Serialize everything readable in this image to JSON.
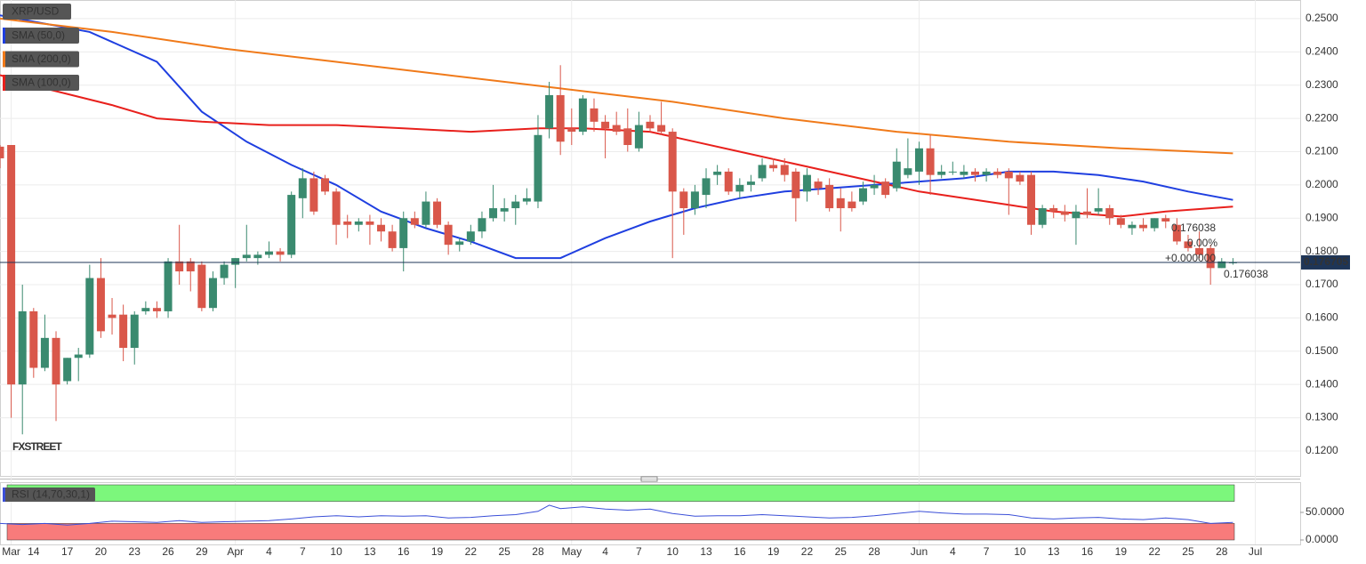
{
  "chart_data": [
    {
      "type": "candlestick",
      "title": "XRP/USD",
      "x": [
        0,
        1,
        2,
        3,
        4,
        5,
        6,
        7,
        8,
        9,
        10,
        11,
        12,
        13,
        14,
        15,
        16,
        17,
        18,
        19,
        20,
        21,
        22,
        23,
        24,
        25,
        26,
        27,
        28,
        29,
        30,
        31,
        32,
        33,
        34,
        35,
        36,
        37,
        38,
        39,
        40,
        41,
        42,
        43,
        44,
        45,
        46,
        47,
        48,
        49,
        50,
        51,
        52,
        53,
        54,
        55,
        56,
        57,
        58,
        59,
        60,
        61,
        62,
        63,
        64,
        65,
        66,
        67,
        68,
        69,
        70,
        71,
        72,
        73,
        74,
        75,
        76,
        77,
        78,
        79,
        80,
        81,
        82,
        83,
        84,
        85,
        86,
        87,
        88,
        89,
        90,
        91,
        92,
        93,
        94,
        95,
        96,
        97,
        98,
        99,
        100,
        101,
        102,
        103,
        104,
        105,
        106,
        107,
        108,
        109,
        110
      ],
      "open": [
        0.2115,
        0.212,
        0.14,
        0.162,
        0.145,
        0.154,
        0.141,
        0.148,
        0.149,
        0.172,
        0.161,
        0.161,
        0.151,
        0.162,
        0.163,
        0.162,
        0.177,
        0.177,
        0.176,
        0.163,
        0.172,
        0.176,
        0.178,
        0.178,
        0.179,
        0.18,
        0.179,
        0.196,
        0.202,
        0.202,
        0.198,
        0.189,
        0.188,
        0.189,
        0.188,
        0.186,
        0.181,
        0.19,
        0.188,
        0.195,
        0.188,
        0.182,
        0.183,
        0.186,
        0.19,
        0.192,
        0.193,
        0.195,
        0.195,
        0.217,
        0.227,
        0.217,
        0.216,
        0.223,
        0.219,
        0.218,
        0.217,
        0.211,
        0.219,
        0.218,
        0.216,
        0.198,
        0.193,
        0.197,
        0.203,
        0.204,
        0.198,
        0.2,
        0.202,
        0.206,
        0.206,
        0.204,
        0.198,
        0.201,
        0.2,
        0.196,
        0.195,
        0.195,
        0.199,
        0.201,
        0.199,
        0.203,
        0.204,
        0.211,
        0.203,
        0.204,
        0.203,
        0.204,
        0.203,
        0.204,
        0.204,
        0.203,
        0.203,
        0.188,
        0.193,
        0.192,
        0.19,
        0.192,
        0.192,
        0.193,
        0.19,
        0.187,
        0.188,
        0.187,
        0.19,
        0.188,
        0.183,
        0.181,
        0.181,
        0.175,
        0.1767
      ],
      "high": [
        0.212,
        0.2115,
        0.17,
        0.163,
        0.161,
        0.156,
        0.148,
        0.151,
        0.176,
        0.178,
        0.166,
        0.164,
        0.162,
        0.165,
        0.165,
        0.178,
        0.188,
        0.178,
        0.177,
        0.174,
        0.177,
        0.178,
        0.188,
        0.18,
        0.183,
        0.181,
        0.198,
        0.205,
        0.204,
        0.203,
        0.199,
        0.191,
        0.19,
        0.191,
        0.19,
        0.188,
        0.192,
        0.192,
        0.198,
        0.196,
        0.189,
        0.184,
        0.188,
        0.192,
        0.2,
        0.196,
        0.197,
        0.199,
        0.221,
        0.231,
        0.236,
        0.223,
        0.227,
        0.226,
        0.221,
        0.222,
        0.223,
        0.222,
        0.221,
        0.225,
        0.217,
        0.199,
        0.2,
        0.205,
        0.206,
        0.205,
        0.202,
        0.203,
        0.208,
        0.208,
        0.208,
        0.205,
        0.205,
        0.202,
        0.202,
        0.199,
        0.198,
        0.201,
        0.203,
        0.202,
        0.211,
        0.214,
        0.213,
        0.215,
        0.206,
        0.207,
        0.206,
        0.205,
        0.205,
        0.205,
        0.205,
        0.204,
        0.204,
        0.194,
        0.194,
        0.194,
        0.194,
        0.199,
        0.199,
        0.194,
        0.191,
        0.189,
        0.19,
        0.19,
        0.191,
        0.19,
        0.185,
        0.186,
        0.182,
        0.178,
        0.178
      ],
      "low": [
        0.205,
        0.13,
        0.125,
        0.142,
        0.144,
        0.129,
        0.14,
        0.141,
        0.148,
        0.154,
        0.155,
        0.147,
        0.146,
        0.161,
        0.16,
        0.16,
        0.17,
        0.168,
        0.162,
        0.162,
        0.17,
        0.169,
        0.177,
        0.176,
        0.178,
        0.177,
        0.178,
        0.19,
        0.191,
        0.197,
        0.182,
        0.184,
        0.186,
        0.182,
        0.183,
        0.18,
        0.174,
        0.187,
        0.187,
        0.187,
        0.179,
        0.18,
        0.182,
        0.184,
        0.189,
        0.189,
        0.188,
        0.194,
        0.193,
        0.214,
        0.209,
        0.212,
        0.215,
        0.216,
        0.208,
        0.215,
        0.21,
        0.21,
        0.216,
        0.215,
        0.178,
        0.185,
        0.191,
        0.193,
        0.2,
        0.197,
        0.196,
        0.198,
        0.201,
        0.204,
        0.201,
        0.189,
        0.195,
        0.197,
        0.192,
        0.186,
        0.192,
        0.194,
        0.197,
        0.196,
        0.198,
        0.202,
        0.2,
        0.197,
        0.202,
        0.203,
        0.202,
        0.201,
        0.201,
        0.202,
        0.191,
        0.2,
        0.185,
        0.187,
        0.19,
        0.189,
        0.182,
        0.19,
        0.191,
        0.188,
        0.187,
        0.185,
        0.186,
        0.186,
        0.187,
        0.182,
        0.18,
        0.178,
        0.17,
        0.175,
        0.176
      ],
      "close": [
        0.208,
        0.14,
        0.162,
        0.145,
        0.154,
        0.14,
        0.148,
        0.149,
        0.172,
        0.156,
        0.16,
        0.151,
        0.161,
        0.163,
        0.162,
        0.177,
        0.174,
        0.174,
        0.163,
        0.172,
        0.176,
        0.178,
        0.179,
        0.179,
        0.18,
        0.179,
        0.197,
        0.202,
        0.192,
        0.198,
        0.188,
        0.188,
        0.189,
        0.188,
        0.186,
        0.181,
        0.19,
        0.188,
        0.195,
        0.188,
        0.182,
        0.183,
        0.186,
        0.19,
        0.193,
        0.193,
        0.195,
        0.196,
        0.215,
        0.227,
        0.213,
        0.216,
        0.226,
        0.219,
        0.217,
        0.216,
        0.212,
        0.218,
        0.217,
        0.216,
        0.198,
        0.193,
        0.198,
        0.202,
        0.204,
        0.198,
        0.2,
        0.201,
        0.206,
        0.205,
        0.203,
        0.196,
        0.203,
        0.199,
        0.193,
        0.193,
        0.193,
        0.199,
        0.2,
        0.197,
        0.207,
        0.205,
        0.211,
        0.203,
        0.204,
        0.204,
        0.204,
        0.203,
        0.204,
        0.203,
        0.202,
        0.201,
        0.188,
        0.193,
        0.192,
        0.191,
        0.192,
        0.191,
        0.193,
        0.19,
        0.188,
        0.188,
        0.187,
        0.19,
        0.189,
        0.183,
        0.181,
        0.179,
        0.175,
        0.177,
        0.1767
      ],
      "up_color": "#3a8a6f",
      "down_color": "#d9574a",
      "series": [
        {
          "name": "SMA (50,0)",
          "color": "#1f3fe0",
          "x": [
            0,
            8,
            14,
            18,
            22,
            26,
            30,
            34,
            38,
            42,
            46,
            50,
            54,
            58,
            62,
            66,
            70,
            74,
            78,
            82,
            86,
            90,
            94,
            98,
            102,
            106,
            110
          ],
          "values": [
            0.251,
            0.246,
            0.237,
            0.222,
            0.213,
            0.206,
            0.2,
            0.192,
            0.187,
            0.183,
            0.178,
            0.178,
            0.184,
            0.189,
            0.193,
            0.196,
            0.198,
            0.199,
            0.2,
            0.201,
            0.202,
            0.204,
            0.204,
            0.203,
            0.201,
            0.198,
            0.1955
          ]
        },
        {
          "name": "SMA (200,0)",
          "color": "#f07a1a",
          "x": [
            0,
            10,
            20,
            30,
            40,
            50,
            60,
            70,
            80,
            90,
            100,
            110
          ],
          "values": [
            0.25,
            0.246,
            0.241,
            0.237,
            0.233,
            0.229,
            0.225,
            0.22,
            0.216,
            0.213,
            0.211,
            0.2095
          ]
        },
        {
          "name": "SMA (100,0)",
          "color": "#e8201c",
          "x": [
            0,
            4,
            10,
            14,
            18,
            24,
            30,
            36,
            42,
            48,
            52,
            58,
            62,
            66,
            70,
            74,
            78,
            82,
            86,
            90,
            94,
            98,
            100,
            104,
            110
          ],
          "values": [
            0.233,
            0.229,
            0.224,
            0.22,
            0.219,
            0.218,
            0.218,
            0.217,
            0.216,
            0.217,
            0.217,
            0.216,
            0.213,
            0.21,
            0.207,
            0.204,
            0.201,
            0.198,
            0.196,
            0.194,
            0.192,
            0.191,
            0.1905,
            0.192,
            0.1935
          ]
        }
      ],
      "xlim": [
        0,
        116
      ],
      "ylim": [
        0.1125,
        0.2556
      ],
      "yticks": [
        {
          "value": 0.12,
          "label": "0.1200"
        },
        {
          "value": 0.13,
          "label": "0.1300"
        },
        {
          "value": 0.14,
          "label": "0.1400"
        },
        {
          "value": 0.15,
          "label": "0.1500"
        },
        {
          "value": 0.16,
          "label": "0.1600"
        },
        {
          "value": 0.17,
          "label": "0.1700"
        },
        {
          "value": 0.18,
          "label": "0.1800"
        },
        {
          "value": 0.19,
          "label": "0.1900"
        },
        {
          "value": 0.2,
          "label": "0.2000"
        },
        {
          "value": 0.21,
          "label": "0.2100"
        },
        {
          "value": 0.22,
          "label": "0.2200"
        },
        {
          "value": 0.23,
          "label": "0.2300"
        },
        {
          "value": 0.24,
          "label": "0.2400"
        },
        {
          "value": 0.25,
          "label": "0.2500"
        }
      ],
      "xticks": [
        {
          "value": 1,
          "label": "Mar"
        },
        {
          "value": 3,
          "label": "14"
        },
        {
          "value": 6,
          "label": "17"
        },
        {
          "value": 9,
          "label": "20"
        },
        {
          "value": 12,
          "label": "23"
        },
        {
          "value": 15,
          "label": "26"
        },
        {
          "value": 18,
          "label": "29"
        },
        {
          "value": 21,
          "label": "Apr"
        },
        {
          "value": 24,
          "label": "4"
        },
        {
          "value": 27,
          "label": "7"
        },
        {
          "value": 30,
          "label": "10"
        },
        {
          "value": 33,
          "label": "13"
        },
        {
          "value": 36,
          "label": "16"
        },
        {
          "value": 39,
          "label": "19"
        },
        {
          "value": 42,
          "label": "22"
        },
        {
          "value": 45,
          "label": "25"
        },
        {
          "value": 48,
          "label": "28"
        },
        {
          "value": 51,
          "label": "May"
        },
        {
          "value": 54,
          "label": "4"
        },
        {
          "value": 57,
          "label": "7"
        },
        {
          "value": 60,
          "label": "10"
        },
        {
          "value": 63,
          "label": "13"
        },
        {
          "value": 66,
          "label": "16"
        },
        {
          "value": 69,
          "label": "19"
        },
        {
          "value": 72,
          "label": "22"
        },
        {
          "value": 75,
          "label": "25"
        },
        {
          "value": 78,
          "label": "28"
        },
        {
          "value": 82,
          "label": "Jun"
        },
        {
          "value": 85,
          "label": "4"
        },
        {
          "value": 88,
          "label": "7"
        },
        {
          "value": 91,
          "label": "10"
        },
        {
          "value": 94,
          "label": "13"
        },
        {
          "value": 97,
          "label": "16"
        },
        {
          "value": 100,
          "label": "19"
        },
        {
          "value": 103,
          "label": "22"
        },
        {
          "value": 106,
          "label": "25"
        },
        {
          "value": 109,
          "label": "28"
        },
        {
          "value": 112,
          "label": "Jul"
        }
      ],
      "grid": true,
      "current_price": {
        "value": 0.176705,
        "label": "0.176705"
      },
      "annotations": [
        "0.176038",
        "0.00%",
        "+0.000000",
        "0.176038"
      ],
      "watermark": "FXSTREET"
    },
    {
      "type": "line",
      "title": "RSI (14,70,30,1)",
      "color": "#3b4fd8",
      "x": [
        0,
        2,
        4,
        6,
        8,
        10,
        12,
        14,
        16,
        18,
        20,
        22,
        24,
        26,
        28,
        30,
        32,
        34,
        36,
        38,
        40,
        42,
        44,
        46,
        48,
        49,
        50,
        52,
        54,
        56,
        58,
        60,
        62,
        64,
        66,
        68,
        70,
        72,
        74,
        76,
        78,
        80,
        82,
        84,
        86,
        88,
        90,
        92,
        94,
        96,
        98,
        100,
        102,
        104,
        106,
        108,
        110
      ],
      "values": [
        30,
        28,
        30,
        27,
        30,
        34,
        33,
        32,
        35,
        32,
        33,
        34,
        35,
        38,
        42,
        44,
        42,
        44,
        43,
        44,
        40,
        41,
        44,
        46,
        52,
        63,
        57,
        60,
        56,
        54,
        56,
        48,
        43,
        44,
        44,
        46,
        44,
        42,
        40,
        41,
        44,
        48,
        52,
        49,
        47,
        47,
        46,
        40,
        38,
        40,
        41,
        38,
        37,
        40,
        37,
        30,
        32
      ],
      "xlim": [
        0,
        116
      ],
      "ylim": [
        0,
        100
      ],
      "yticks": [
        {
          "value": 0,
          "label": "0.0000"
        },
        {
          "value": 50,
          "label": "50.0000"
        }
      ],
      "bands": [
        30,
        70
      ],
      "band_colors": [
        "#f87b7b",
        "#7cf77c"
      ]
    }
  ]
}
